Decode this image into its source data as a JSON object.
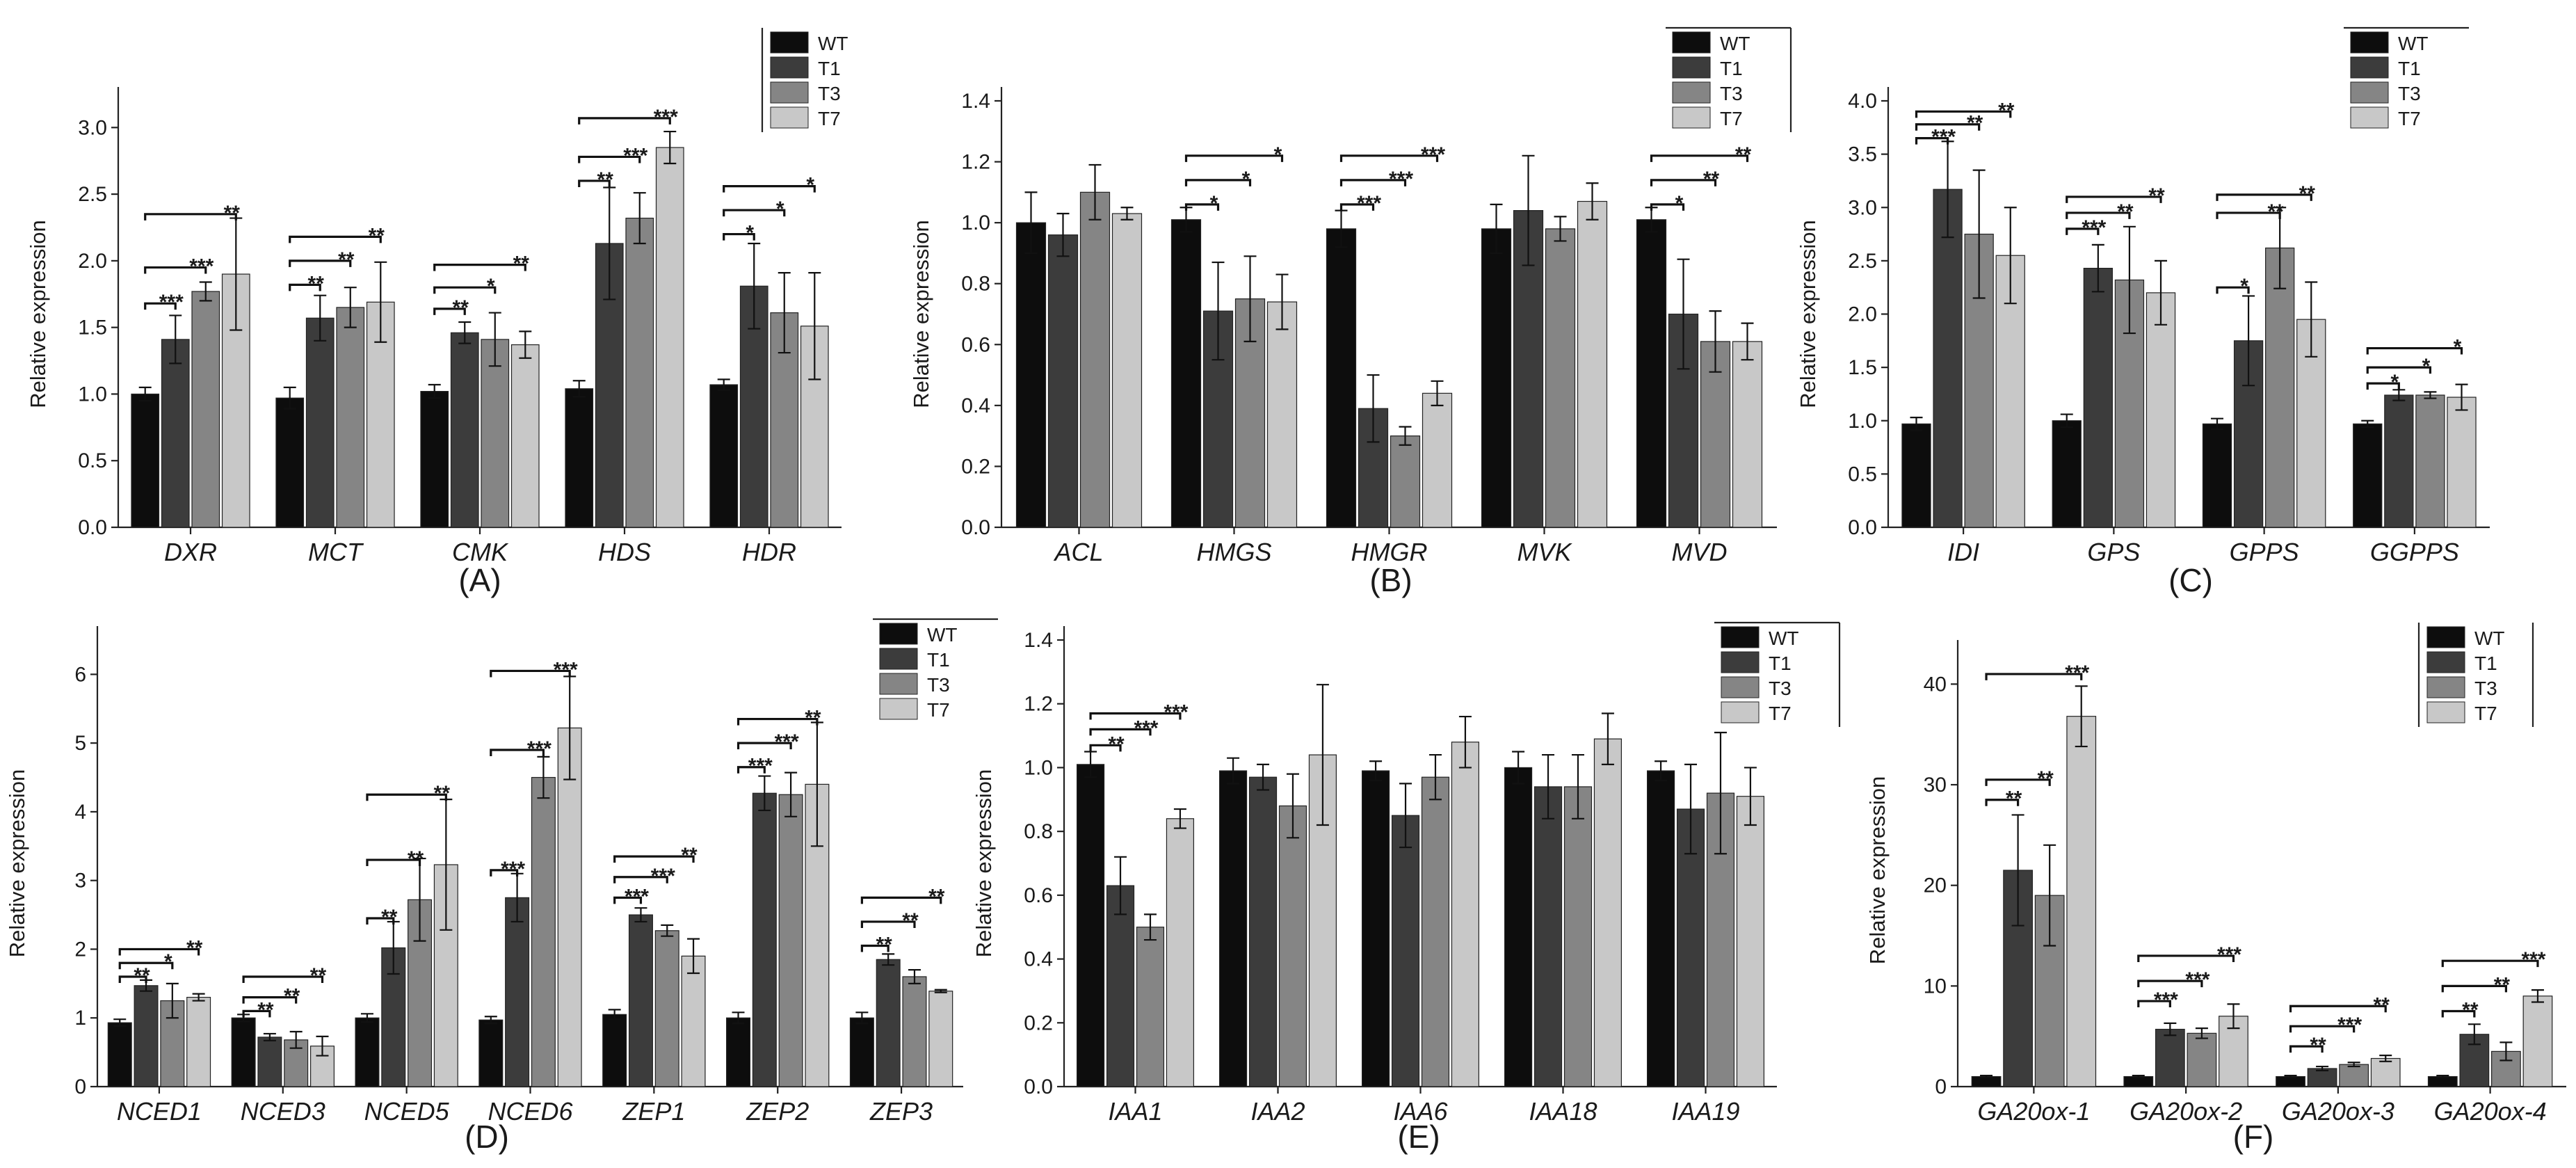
{
  "figure": {
    "series_names": [
      "WT",
      "T1",
      "T3",
      "T7"
    ],
    "colors": {
      "WT": "#0d0d0d",
      "T1": "#3c3c3c",
      "T3": "#858585",
      "T7": "#c8c8c8"
    }
  },
  "chart_data": [
    {
      "type": "bar",
      "panel_label": "(A)",
      "ylabel": "Relative expression",
      "ylim": [
        0,
        3.2
      ],
      "yticks": [
        "0.0",
        "0.5",
        "1.0",
        "1.5",
        "2.0",
        "2.5",
        "3.0"
      ],
      "categories": [
        "DXR",
        "MCT",
        "CMK",
        "HDS",
        "HDR"
      ],
      "legend": [
        "WT",
        "T1",
        "T3",
        "T7"
      ],
      "series": [
        {
          "name": "WT",
          "values": [
            1.0,
            0.97,
            1.02,
            1.04,
            1.07
          ],
          "errors": [
            0.05,
            0.08,
            0.05,
            0.06,
            0.04
          ]
        },
        {
          "name": "T1",
          "values": [
            1.41,
            1.57,
            1.46,
            2.13,
            1.81
          ],
          "errors": [
            0.18,
            0.17,
            0.08,
            0.42,
            0.32
          ]
        },
        {
          "name": "T3",
          "values": [
            1.77,
            1.65,
            1.41,
            2.32,
            1.61
          ],
          "errors": [
            0.07,
            0.15,
            0.2,
            0.19,
            0.3
          ]
        },
        {
          "name": "T7",
          "values": [
            1.9,
            1.69,
            1.37,
            2.85,
            1.51
          ],
          "errors": [
            0.42,
            0.3,
            0.1,
            0.12,
            0.4
          ]
        }
      ],
      "significance": [
        {
          "category": 0,
          "to": 1,
          "label": "***",
          "level": 1.68
        },
        {
          "category": 0,
          "to": 2,
          "label": "***",
          "level": 1.95
        },
        {
          "category": 0,
          "to": 3,
          "label": "**",
          "level": 2.35
        },
        {
          "category": 1,
          "to": 1,
          "label": "**",
          "level": 1.82
        },
        {
          "category": 1,
          "to": 2,
          "label": "**",
          "level": 2.0
        },
        {
          "category": 1,
          "to": 3,
          "label": "**",
          "level": 2.18
        },
        {
          "category": 2,
          "to": 1,
          "label": "**",
          "level": 1.64
        },
        {
          "category": 2,
          "to": 2,
          "label": "*",
          "level": 1.8
        },
        {
          "category": 2,
          "to": 3,
          "label": "**",
          "level": 1.97
        },
        {
          "category": 3,
          "to": 1,
          "label": "**",
          "level": 2.6
        },
        {
          "category": 3,
          "to": 2,
          "label": "***",
          "level": 2.78
        },
        {
          "category": 3,
          "to": 3,
          "label": "***",
          "level": 3.07
        },
        {
          "category": 4,
          "to": 1,
          "label": "*",
          "level": 2.2
        },
        {
          "category": 4,
          "to": 2,
          "label": "*",
          "level": 2.38
        },
        {
          "category": 4,
          "to": 3,
          "label": "*",
          "level": 2.56
        }
      ]
    },
    {
      "type": "bar",
      "panel_label": "(B)",
      "ylabel": "Relative expression",
      "ylim": [
        0,
        1.4
      ],
      "yticks": [
        "0.0",
        "0.2",
        "0.4",
        "0.6",
        "0.8",
        "1.0",
        "1.2",
        "1.4"
      ],
      "categories": [
        "ACL",
        "HMGS",
        "HMGR",
        "MVK",
        "MVD"
      ],
      "legend": [
        "WT",
        "T1",
        "T3",
        "T7"
      ],
      "series": [
        {
          "name": "WT",
          "values": [
            1.0,
            1.01,
            0.98,
            0.98,
            1.01
          ],
          "errors": [
            0.1,
            0.04,
            0.06,
            0.08,
            0.04
          ]
        },
        {
          "name": "T1",
          "values": [
            0.96,
            0.71,
            0.39,
            1.04,
            0.7
          ],
          "errors": [
            0.07,
            0.16,
            0.11,
            0.18,
            0.18
          ]
        },
        {
          "name": "T3",
          "values": [
            1.1,
            0.75,
            0.3,
            0.98,
            0.61
          ],
          "errors": [
            0.09,
            0.14,
            0.03,
            0.04,
            0.1
          ]
        },
        {
          "name": "T7",
          "values": [
            1.03,
            0.74,
            0.44,
            1.07,
            0.61
          ],
          "errors": [
            0.02,
            0.09,
            0.04,
            0.06,
            0.06
          ]
        }
      ],
      "significance": [
        {
          "category": 1,
          "to": 1,
          "label": "*",
          "level": 1.06
        },
        {
          "category": 1,
          "to": 2,
          "label": "*",
          "level": 1.14
        },
        {
          "category": 1,
          "to": 3,
          "label": "*",
          "level": 1.22
        },
        {
          "category": 2,
          "to": 1,
          "label": "***",
          "level": 1.06
        },
        {
          "category": 2,
          "to": 2,
          "label": "***",
          "level": 1.14
        },
        {
          "category": 2,
          "to": 3,
          "label": "***",
          "level": 1.22
        },
        {
          "category": 4,
          "to": 1,
          "label": "*",
          "level": 1.06
        },
        {
          "category": 4,
          "to": 2,
          "label": "**",
          "level": 1.14
        },
        {
          "category": 4,
          "to": 3,
          "label": "**",
          "level": 1.22
        }
      ]
    },
    {
      "type": "bar",
      "panel_label": "(C)",
      "ylabel": "Relative expression",
      "ylim": [
        0,
        4.0
      ],
      "yticks": [
        "0.0",
        "0.5",
        "1.0",
        "1.5",
        "2.0",
        "2.5",
        "3.0",
        "3.5",
        "4.0"
      ],
      "categories": [
        "IDI",
        "GPS",
        "GPPS",
        "GGPPS"
      ],
      "legend": [
        "WT",
        "T1",
        "T3",
        "T7"
      ],
      "series": [
        {
          "name": "WT",
          "values": [
            0.97,
            1.0,
            0.97,
            0.97
          ],
          "errors": [
            0.06,
            0.06,
            0.05,
            0.03
          ]
        },
        {
          "name": "T1",
          "values": [
            3.17,
            2.43,
            1.75,
            1.24
          ],
          "errors": [
            0.45,
            0.22,
            0.42,
            0.05
          ]
        },
        {
          "name": "T3",
          "values": [
            2.75,
            2.32,
            2.62,
            1.24
          ],
          "errors": [
            0.6,
            0.5,
            0.38,
            0.03
          ]
        },
        {
          "name": "T7",
          "values": [
            2.55,
            2.2,
            1.95,
            1.22
          ],
          "errors": [
            0.45,
            0.3,
            0.35,
            0.12
          ]
        }
      ],
      "significance": [
        {
          "category": 0,
          "to": 1,
          "label": "***",
          "level": 3.65
        },
        {
          "category": 0,
          "to": 2,
          "label": "**",
          "level": 3.78
        },
        {
          "category": 0,
          "to": 3,
          "label": "**",
          "level": 3.9
        },
        {
          "category": 1,
          "to": 1,
          "label": "***",
          "level": 2.8
        },
        {
          "category": 1,
          "to": 2,
          "label": "**",
          "level": 2.95
        },
        {
          "category": 1,
          "to": 3,
          "label": "**",
          "level": 3.1
        },
        {
          "category": 2,
          "to": 1,
          "label": "*",
          "level": 2.25
        },
        {
          "category": 2,
          "to": 2,
          "label": "**",
          "level": 2.95
        },
        {
          "category": 2,
          "to": 3,
          "label": "**",
          "level": 3.12
        },
        {
          "category": 3,
          "to": 1,
          "label": "*",
          "level": 1.35
        },
        {
          "category": 3,
          "to": 2,
          "label": "*",
          "level": 1.5
        },
        {
          "category": 3,
          "to": 3,
          "label": "*",
          "level": 1.68
        }
      ]
    },
    {
      "type": "bar",
      "panel_label": "(D)",
      "ylabel": "Relative expression",
      "ylim": [
        0,
        6.5
      ],
      "yticks": [
        "0",
        "1",
        "2",
        "3",
        "4",
        "5",
        "6"
      ],
      "categories": [
        "NCED1",
        "NCED3",
        "NCED5",
        "NCED6",
        "ZEP1",
        "ZEP2",
        "ZEP3"
      ],
      "legend": [
        "WT",
        "T1",
        "T3",
        "T7"
      ],
      "series": [
        {
          "name": "WT",
          "values": [
            0.93,
            1.0,
            1.0,
            0.97,
            1.05,
            1.0,
            1.0
          ],
          "errors": [
            0.05,
            0.05,
            0.06,
            0.05,
            0.07,
            0.08,
            0.08
          ]
        },
        {
          "name": "T1",
          "values": [
            1.47,
            0.72,
            2.02,
            2.75,
            2.5,
            4.27,
            1.85
          ]
        },
        {
          "name": "T3",
          "values": [
            1.25,
            0.68,
            2.72,
            4.5,
            2.27,
            4.25,
            1.6
          ]
        },
        {
          "name": "T7",
          "values": [
            1.3,
            0.59,
            3.23,
            5.22,
            1.9,
            4.4,
            1.39
          ]
        }
      ],
      "errors_T": [
        [
          0.08,
          0.05,
          0.38,
          0.35,
          0.1,
          0.25,
          0.08
        ],
        [
          0.25,
          0.12,
          0.6,
          0.3,
          0.08,
          0.32,
          0.1
        ],
        [
          0.05,
          0.14,
          0.95,
          0.75,
          0.25,
          0.9,
          0.02
        ]
      ],
      "significance": [
        {
          "category": 0,
          "to": 1,
          "label": "**",
          "level": 1.6
        },
        {
          "category": 0,
          "to": 2,
          "label": "*",
          "level": 1.8
        },
        {
          "category": 0,
          "to": 3,
          "label": "**",
          "level": 2.0
        },
        {
          "category": 1,
          "to": 1,
          "label": "**",
          "level": 1.1
        },
        {
          "category": 1,
          "to": 2,
          "label": "**",
          "level": 1.3
        },
        {
          "category": 1,
          "to": 3,
          "label": "**",
          "level": 1.6
        },
        {
          "category": 2,
          "to": 1,
          "label": "**",
          "level": 2.45
        },
        {
          "category": 2,
          "to": 2,
          "label": "**",
          "level": 3.3
        },
        {
          "category": 2,
          "to": 3,
          "label": "**",
          "level": 4.25
        },
        {
          "category": 3,
          "to": 1,
          "label": "***",
          "level": 3.15
        },
        {
          "category": 3,
          "to": 2,
          "label": "***",
          "level": 4.9
        },
        {
          "category": 3,
          "to": 3,
          "label": "***",
          "level": 6.05
        },
        {
          "category": 4,
          "to": 1,
          "label": "***",
          "level": 2.75
        },
        {
          "category": 4,
          "to": 2,
          "label": "***",
          "level": 3.05
        },
        {
          "category": 4,
          "to": 3,
          "label": "**",
          "level": 3.35
        },
        {
          "category": 5,
          "to": 1,
          "label": "***",
          "level": 4.65
        },
        {
          "category": 5,
          "to": 2,
          "label": "***",
          "level": 5.0
        },
        {
          "category": 5,
          "to": 3,
          "label": "**",
          "level": 5.35
        },
        {
          "category": 6,
          "to": 1,
          "label": "**",
          "level": 2.05
        },
        {
          "category": 6,
          "to": 2,
          "label": "**",
          "level": 2.4
        },
        {
          "category": 6,
          "to": 3,
          "label": "**",
          "level": 2.75
        }
      ]
    },
    {
      "type": "bar",
      "panel_label": "(E)",
      "ylabel": "Relative expression",
      "ylim": [
        0,
        1.4
      ],
      "yticks": [
        "0.0",
        "0.2",
        "0.4",
        "0.6",
        "0.8",
        "1.0",
        "1.2",
        "1.4"
      ],
      "categories": [
        "IAA1",
        "IAA2",
        "IAA6",
        "IAA18",
        "IAA19"
      ],
      "legend": [
        "WT",
        "T1",
        "T3",
        "T7"
      ],
      "series": [
        {
          "name": "WT",
          "values": [
            1.01,
            0.99,
            0.99,
            1.0,
            0.99
          ],
          "errors": [
            0.04,
            0.04,
            0.03,
            0.05,
            0.03
          ]
        },
        {
          "name": "T1",
          "values": [
            0.63,
            0.97,
            0.85,
            0.94,
            0.87
          ],
          "errors": [
            0.09,
            0.04,
            0.1,
            0.1,
            0.14
          ]
        },
        {
          "name": "T3",
          "values": [
            0.5,
            0.88,
            0.97,
            0.94,
            0.92
          ],
          "errors": [
            0.04,
            0.1,
            0.07,
            0.1,
            0.19
          ]
        },
        {
          "name": "T7",
          "values": [
            0.84,
            1.04,
            1.08,
            1.09,
            0.91
          ],
          "errors": [
            0.03,
            0.22,
            0.08,
            0.08,
            0.09
          ]
        }
      ],
      "significance": [
        {
          "category": 0,
          "to": 1,
          "label": "**",
          "level": 1.07
        },
        {
          "category": 0,
          "to": 2,
          "label": "***",
          "level": 1.12
        },
        {
          "category": 0,
          "to": 3,
          "label": "***",
          "level": 1.17
        }
      ]
    },
    {
      "type": "bar",
      "panel_label": "(F)",
      "ylabel": "Relative expression",
      "ylim": [
        0,
        43
      ],
      "yticks": [
        "0",
        "10",
        "20",
        "30",
        "40"
      ],
      "categories": [
        "GA20ox-1",
        "GA20ox-2",
        "GA20ox-3",
        "GA20ox-4"
      ],
      "legend": [
        "WT",
        "T1",
        "T3",
        "T7"
      ],
      "series": [
        {
          "name": "WT",
          "values": [
            1.0,
            1.0,
            1.0,
            1.0
          ],
          "errors": [
            0.1,
            0.1,
            0.1,
            0.1
          ]
        },
        {
          "name": "T1",
          "values": [
            21.5,
            5.7,
            1.8,
            5.2
          ],
          "errors": [
            5.5,
            0.6,
            0.2,
            1.0
          ]
        },
        {
          "name": "T3",
          "values": [
            19.0,
            5.3,
            2.2,
            3.5
          ],
          "errors": [
            5.0,
            0.5,
            0.2,
            0.9
          ]
        },
        {
          "name": "T7",
          "values": [
            36.8,
            7.0,
            2.8,
            9.0
          ],
          "errors": [
            3.0,
            1.2,
            0.3,
            0.6
          ]
        }
      ],
      "significance": [
        {
          "category": 0,
          "to": 1,
          "label": "**",
          "level": 28.5
        },
        {
          "category": 0,
          "to": 2,
          "label": "**",
          "level": 30.5
        },
        {
          "category": 0,
          "to": 3,
          "label": "***",
          "level": 41.0
        },
        {
          "category": 1,
          "to": 1,
          "label": "***",
          "level": 8.5
        },
        {
          "category": 1,
          "to": 2,
          "label": "***",
          "level": 10.5
        },
        {
          "category": 1,
          "to": 3,
          "label": "***",
          "level": 13.0
        },
        {
          "category": 2,
          "to": 1,
          "label": "**",
          "level": 4.0
        },
        {
          "category": 2,
          "to": 2,
          "label": "***",
          "level": 6.0
        },
        {
          "category": 2,
          "to": 3,
          "label": "**",
          "level": 8.0
        },
        {
          "category": 3,
          "to": 1,
          "label": "**",
          "level": 7.5
        },
        {
          "category": 3,
          "to": 2,
          "label": "**",
          "level": 10.0
        },
        {
          "category": 3,
          "to": 3,
          "label": "***",
          "level": 12.5
        }
      ]
    }
  ]
}
